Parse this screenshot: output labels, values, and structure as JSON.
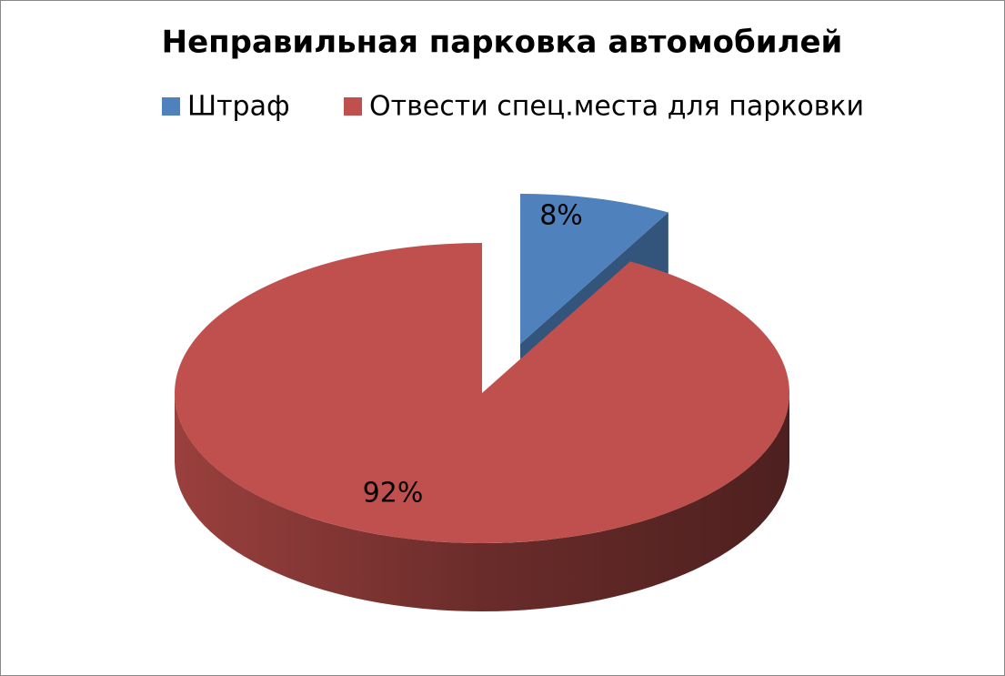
{
  "chart_data": {
    "type": "pie",
    "title": "Неправильная парковка автомобилей",
    "categories": [
      "Штраф",
      "Отвести спец.места для парковки"
    ],
    "values": [
      8,
      92
    ],
    "value_labels": [
      "8%",
      "92%"
    ],
    "colors": [
      "#4f81bd",
      "#c0504d"
    ],
    "legend": "top"
  }
}
